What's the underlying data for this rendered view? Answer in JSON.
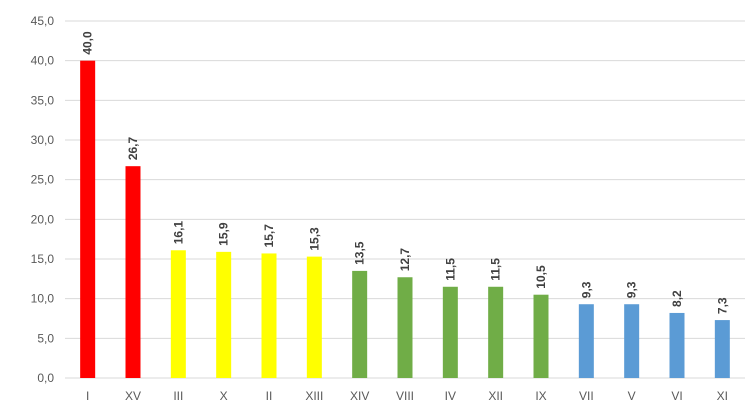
{
  "chart_data": {
    "type": "bar",
    "categories": [
      "I",
      "XV",
      "III",
      "X",
      "II",
      "XIII",
      "XIV",
      "VIII",
      "IV",
      "XII",
      "IX",
      "VII",
      "V",
      "VI",
      "XI"
    ],
    "values": [
      40.0,
      26.7,
      16.1,
      15.9,
      15.7,
      15.3,
      13.5,
      12.7,
      11.5,
      11.5,
      10.5,
      9.3,
      9.3,
      8.2,
      7.3
    ],
    "data_labels": [
      "40,0",
      "26,7",
      "16,1",
      "15,9",
      "15,7",
      "15,3",
      "13,5",
      "12,7",
      "11,5",
      "11,5",
      "10,5",
      "9,3",
      "9,3",
      "8,2",
      "7,3"
    ],
    "bar_colors": [
      "#ff0000",
      "#ff0000",
      "#ffff00",
      "#ffff00",
      "#ffff00",
      "#ffff00",
      "#70ad47",
      "#70ad47",
      "#70ad47",
      "#70ad47",
      "#70ad47",
      "#5b9bd5",
      "#5b9bd5",
      "#5b9bd5",
      "#5b9bd5"
    ],
    "y_ticks": [
      0,
      5,
      10,
      15,
      20,
      25,
      30,
      35,
      40,
      45
    ],
    "y_tick_labels": [
      "0,0",
      "5,0",
      "10,0",
      "15,0",
      "20,0",
      "25,0",
      "30,0",
      "35,0",
      "40,0",
      "45,0"
    ],
    "ylim": [
      0,
      45
    ],
    "grid": true,
    "legend": "none"
  }
}
